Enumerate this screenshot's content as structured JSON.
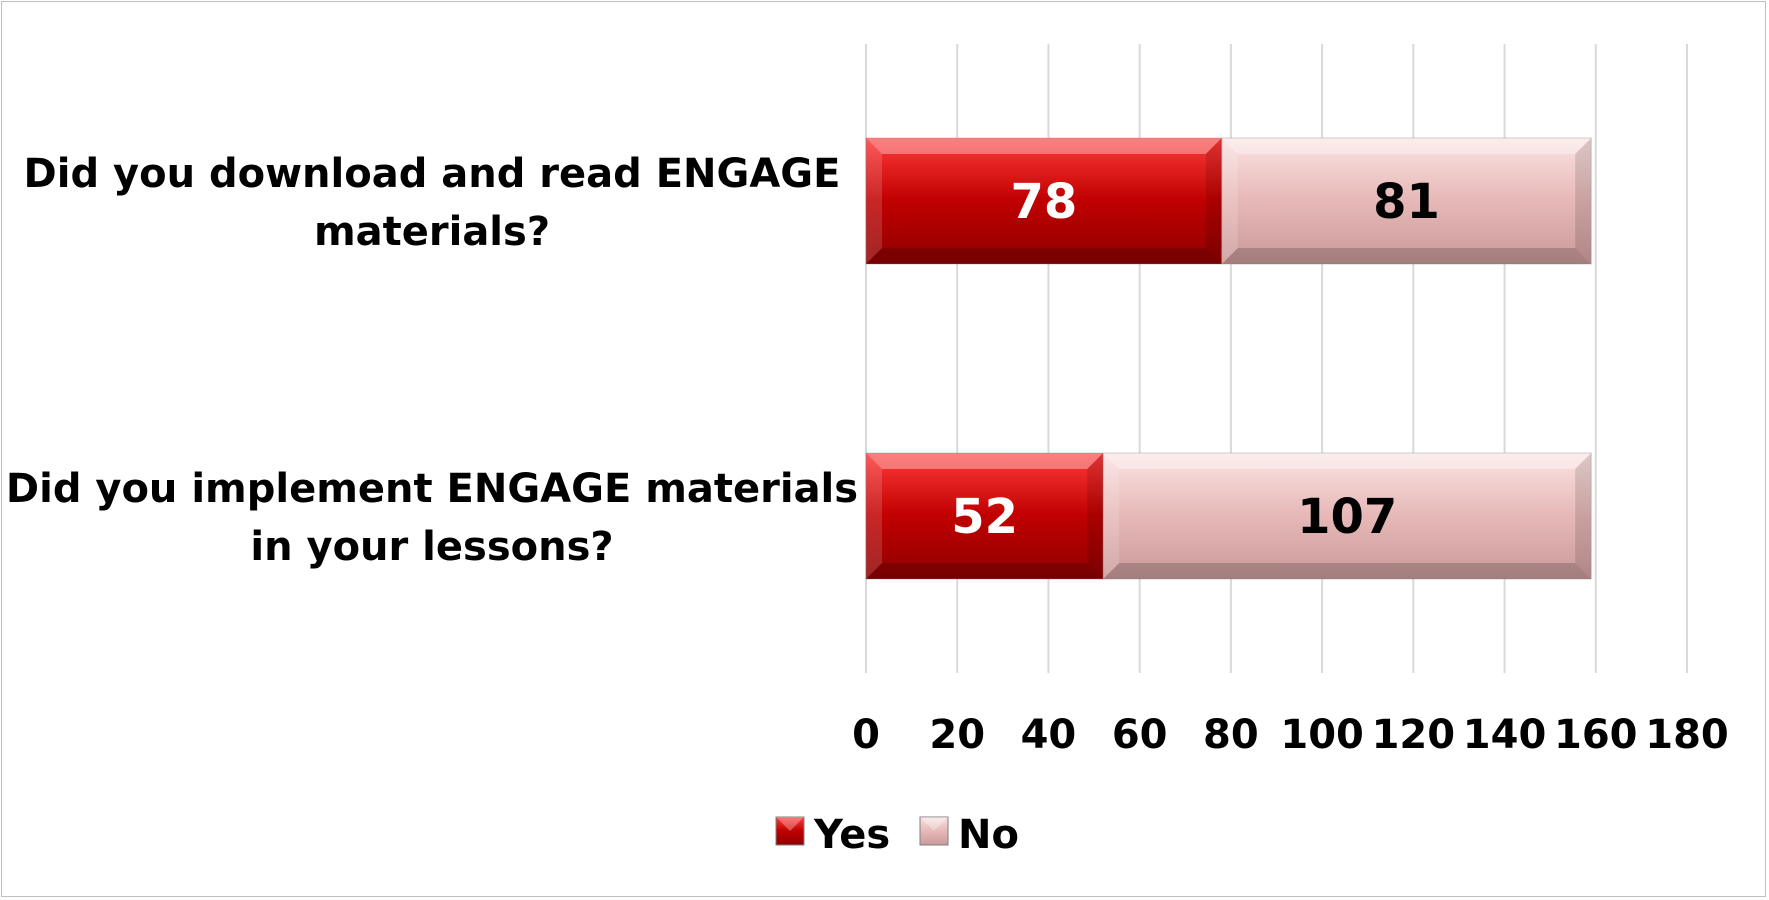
{
  "chart_data": {
    "type": "bar",
    "orientation": "horizontal",
    "stacked": true,
    "title": "",
    "xlabel": "",
    "ylabel": "",
    "categories": [
      "Did you download and read ENGAGE materials?",
      "Did you implement ENGAGE materials in your lessons?"
    ],
    "category_lines": [
      [
        "Did you download and read ENGAGE",
        "materials?"
      ],
      [
        "Did you implement ENGAGE materials",
        "in your lessons?"
      ]
    ],
    "series": [
      {
        "name": "Yes",
        "values": [
          78,
          52
        ],
        "color": "#c00000",
        "label_color": "#ffffff"
      },
      {
        "name": "No",
        "values": [
          81,
          107
        ],
        "color": "#e6b8b7",
        "label_color": "#000000"
      }
    ],
    "xlim": [
      0,
      180
    ],
    "xticks": [
      0,
      20,
      40,
      60,
      80,
      100,
      120,
      140,
      160,
      180
    ],
    "grid": true,
    "legend_position": "bottom"
  }
}
